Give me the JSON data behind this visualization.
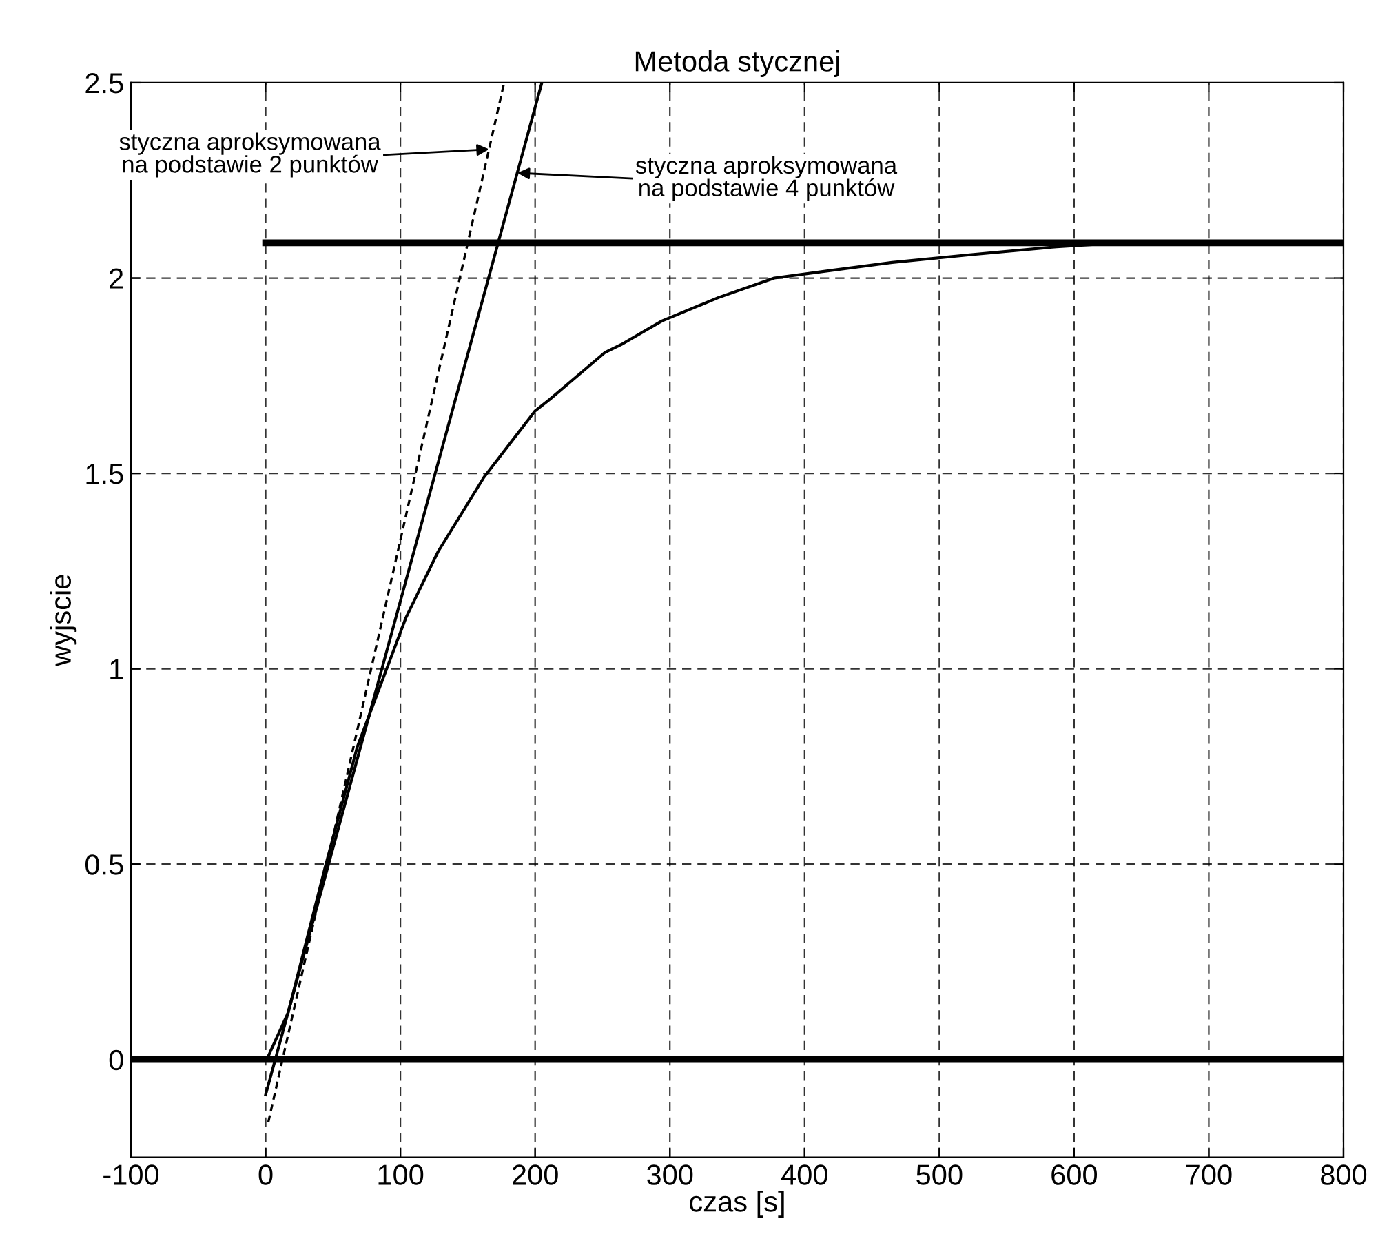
{
  "chart_data": {
    "type": "line",
    "title": "Metoda stycznej",
    "xlabel": "czas [s]",
    "ylabel": "wyjscie",
    "xlim": [
      -100,
      800
    ],
    "xticks": [
      -100,
      0,
      100,
      200,
      300,
      400,
      500,
      600,
      700,
      800
    ],
    "ylim": [
      -0.25,
      2.5
    ],
    "yticks": [
      0,
      0.5,
      1,
      1.5,
      2,
      2.5
    ],
    "grid": true,
    "legend": false,
    "series": [
      {
        "color": "#000000",
        "line_style": "solid",
        "x": [
          0.8,
          16.7,
          44,
          68,
          104,
          128,
          162,
          200,
          211,
          252,
          264,
          294,
          336,
          377.5,
          421,
          465,
          524,
          587,
          634,
          700,
          800
        ],
        "values": [
          0,
          0.12,
          0.49,
          0.8,
          1.13,
          1.3,
          1.49,
          1.66,
          1.69,
          1.81,
          1.83,
          1.89,
          1.95,
          2.0,
          2.02,
          2.04,
          2.06,
          2.08,
          2.09,
          2.09,
          2.09
        ]
      },
      {
        "color": "#000000",
        "line_style": "solid",
        "x": [
          0,
          205
        ],
        "values": [
          -0.09,
          2.5
        ]
      },
      {
        "color": "#000000",
        "line_style": "dashed",
        "x": [
          2,
          177
        ],
        "values": [
          -0.16,
          2.5
        ]
      },
      {
        "color": "#000000",
        "line_style": "solid",
        "x": [
          0,
          800
        ],
        "values": [
          2.09,
          2.09
        ]
      }
    ],
    "ref_lines": [
      {
        "axis": "y",
        "value": 0,
        "color": "#000000",
        "line_style": "solid"
      }
    ],
    "annotations": [
      "styczna aproksymowana\nna podstawie 2 punktów",
      "styczna aproksymowana\nna podstawie 4 punktów"
    ]
  }
}
